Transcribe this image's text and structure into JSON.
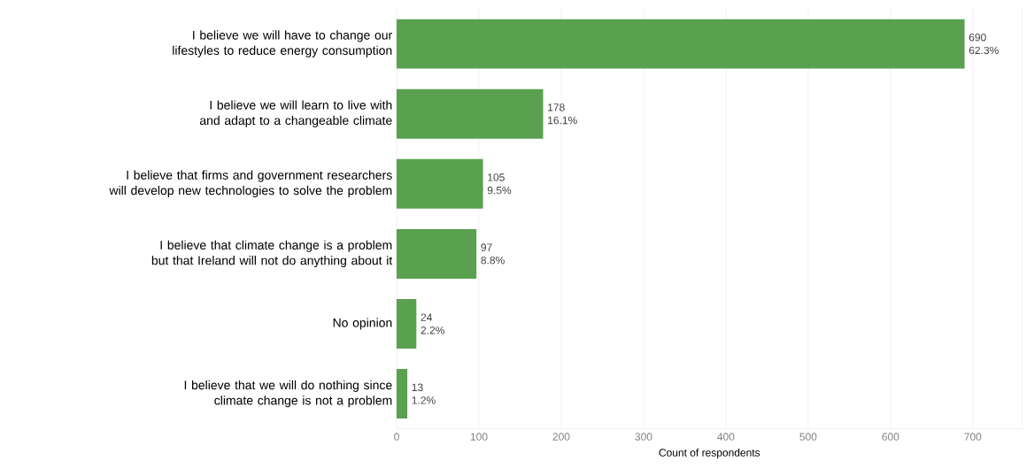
{
  "chart_data": {
    "type": "bar",
    "orientation": "horizontal",
    "categories": [
      "I believe we will have to change our lifestyles to reduce energy consumption",
      "I believe we will learn to live with and adapt to a changeable climate",
      "I believe that firms and government researchers will develop new technologies to solve the problem",
      "I believe that climate change is a problem but that Ireland will not do anything about it",
      "No opinion",
      "I believe that we will do nothing since climate change is not a problem"
    ],
    "values": [
      690,
      178,
      105,
      97,
      24,
      13
    ],
    "value_labels": [
      "690 62.3%",
      "178 16.1%",
      "105 9.5%",
      "97 8.8%",
      "24 2.2%",
      "13 1.2%"
    ],
    "color": "#59a14f",
    "xlabel": "Count of respondents",
    "xlim": [
      0,
      760
    ],
    "xticks": [
      0,
      100,
      200,
      300,
      400,
      500,
      600,
      700
    ],
    "grid": "x"
  }
}
